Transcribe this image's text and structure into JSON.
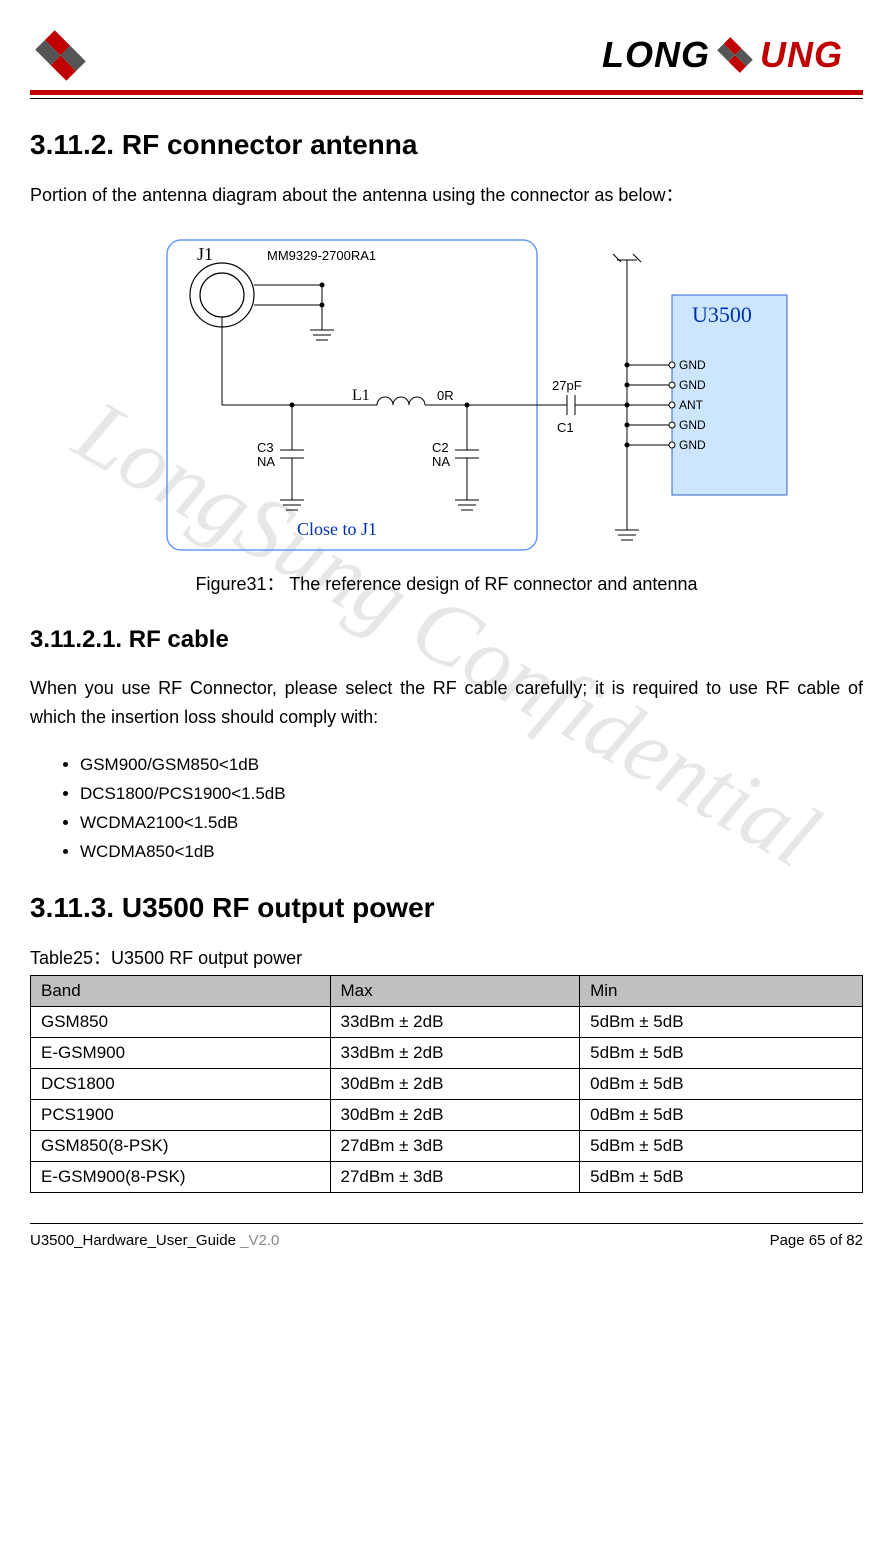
{
  "header": {
    "brand_left": "LONG",
    "brand_right": "UNG"
  },
  "watermark": "LongSung Confidential",
  "section1": {
    "heading": "3.11.2. RF connector antenna",
    "intro": "Portion of the antenna diagram about the antenna using the connector as below：",
    "figure_caption": "Figure31： The   reference design of RF connector and antenna"
  },
  "diagram": {
    "labels": {
      "j1": "J1",
      "part": "MM9329-2700RA1",
      "l1": "L1",
      "r": "0R",
      "c3": "C3",
      "c3v": "NA",
      "c2": "C2",
      "c2v": "NA",
      "cap": "27pF",
      "c1": "C1",
      "close": "Close to J1",
      "chip": "U3500",
      "pins": [
        "GND",
        "GND",
        "ANT",
        "GND",
        "GND"
      ]
    },
    "colors": {
      "box_stroke": "#6699ff",
      "chip_fill": "#cce6ff",
      "chip_stroke": "#3366cc",
      "chip_text": "#0033aa",
      "close_text": "#0033aa",
      "line": "#000000"
    }
  },
  "section2": {
    "heading": "3.11.2.1. RF cable",
    "intro": "When you use RF Connector, please select the RF cable carefully; it is required to use RF cable of which the insertion loss should comply with:",
    "bullets": [
      "GSM900/GSM850<1dB",
      "DCS1800/PCS1900<1.5dB",
      "WCDMA2100<1.5dB",
      "WCDMA850<1dB"
    ]
  },
  "section3": {
    "heading": "3.11.3. U3500 RF output power",
    "table_caption": "Table25：U3500 RF output power",
    "columns": [
      "Band",
      "Max",
      "Min"
    ],
    "col_widths": [
      "36%",
      "30%",
      "34%"
    ],
    "rows": [
      [
        "GSM850",
        "33dBm ± 2dB",
        "5dBm ± 5dB"
      ],
      [
        "E-GSM900",
        "33dBm ± 2dB",
        "5dBm ± 5dB"
      ],
      [
        "DCS1800",
        "30dBm ± 2dB",
        "0dBm ± 5dB"
      ],
      [
        "PCS1900",
        "30dBm ± 2dB",
        "0dBm ± 5dB"
      ],
      [
        "GSM850(8-PSK)",
        "27dBm ± 3dB",
        "5dBm ± 5dB"
      ],
      [
        "E-GSM900(8-PSK)",
        "27dBm ± 3dB",
        "5dBm ± 5dB"
      ]
    ]
  },
  "footer": {
    "doc": "U3500_Hardware_User_Guide ",
    "ver": "_V2.0",
    "page": "Page 65 of 82"
  }
}
